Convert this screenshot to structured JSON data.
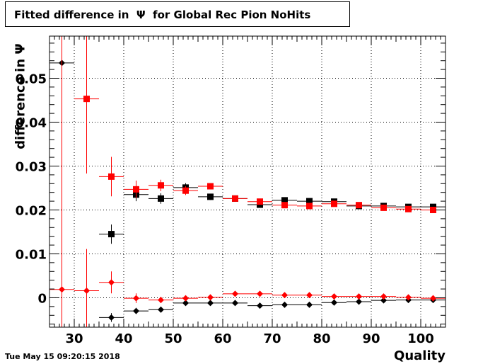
{
  "title": "Fitted difference in  Ψ  for Global Rec Pion NoHits",
  "timestamp": "Tue May 15 09:20:15 2018",
  "chart_data": {
    "type": "scatter",
    "xlabel": "Quality",
    "ylabel": "difference in  Ψ",
    "xlim": [
      25,
      105
    ],
    "ylim": [
      -0.0067,
      0.0596
    ],
    "xticks": [
      30,
      40,
      50,
      60,
      70,
      80,
      90,
      100
    ],
    "yticks": [
      0,
      0.01,
      0.02,
      0.03,
      0.04,
      0.05
    ],
    "ytick_labels": [
      "0",
      "0.01",
      "0.02",
      "0.03",
      "0.04",
      "0.05"
    ],
    "grid": true,
    "bin_halfwidth": 2.5,
    "series": [
      {
        "marker": "square",
        "color": "#000000",
        "x": [
          37.5,
          42.5,
          47.5,
          52.5,
          57.5,
          62.5,
          67.5,
          72.5,
          77.5,
          82.5,
          87.5,
          92.5,
          97.5,
          102.5
        ],
        "y": [
          0.0145,
          0.0235,
          0.0226,
          0.0251,
          0.023,
          0.0226,
          0.0212,
          0.0222,
          0.022,
          0.0219,
          0.0209,
          0.0209,
          0.0207,
          0.0207
        ],
        "err": [
          0.0022,
          0.0015,
          0.0012,
          0.001,
          0.0007,
          0.0005,
          0.0004,
          0.0003,
          0.0003,
          0.0003,
          0.0002,
          0.0002,
          0.0002,
          0.0002
        ]
      },
      {
        "marker": "square",
        "color": "#ff0000",
        "x": [
          32.5,
          37.5,
          42.5,
          47.5,
          52.5,
          57.5,
          62.5,
          67.5,
          72.5,
          77.5,
          82.5,
          87.5,
          92.5,
          97.5,
          102.5
        ],
        "y": [
          0.0453,
          0.0276,
          0.0247,
          0.0256,
          0.0244,
          0.0254,
          0.0226,
          0.0219,
          0.0211,
          0.0209,
          0.0214,
          0.0211,
          0.0205,
          0.0202,
          0.02
        ],
        "err": [
          0.017,
          0.0045,
          0.002,
          0.0013,
          0.001,
          0.0006,
          0.0005,
          0.0004,
          0.0003,
          0.0003,
          0.0003,
          0.0002,
          0.0002,
          0.0002,
          0.0002
        ]
      },
      {
        "marker": "diamond",
        "color": "#000000",
        "x": [
          27.5,
          37.5,
          42.5,
          47.5,
          52.5,
          57.5,
          62.5,
          67.5,
          72.5,
          77.5,
          82.5,
          87.5,
          92.5,
          97.5,
          102.5
        ],
        "y": [
          0.0535,
          -0.0045,
          -0.003,
          -0.0027,
          -0.0012,
          -0.0012,
          -0.0012,
          -0.0018,
          -0.0016,
          -0.0016,
          -0.0011,
          -0.0009,
          -0.0006,
          -0.0005,
          -0.0005
        ],
        "err": [
          0.01,
          0.001,
          0.0007,
          0.0005,
          0.0004,
          0.0003,
          0.0003,
          0.0002,
          0.0002,
          0.0002,
          0.0002,
          0.0002,
          0.0001,
          0.0001,
          0.0001
        ]
      },
      {
        "marker": "diamond",
        "color": "#ff0000",
        "x": [
          27.5,
          32.5,
          37.5,
          42.5,
          47.5,
          52.5,
          57.5,
          62.5,
          67.5,
          72.5,
          77.5,
          82.5,
          87.5,
          92.5,
          97.5,
          102.5
        ],
        "y": [
          0.0019,
          0.0016,
          0.0035,
          -0.0001,
          -0.0005,
          -0.0001,
          0.0001,
          0.0009,
          0.0009,
          0.0006,
          0.0006,
          0.0003,
          0.0003,
          0.0003,
          0.0001,
          -0.0001
        ],
        "err": [
          0.062,
          0.0095,
          0.0025,
          0.0011,
          0.0007,
          0.0005,
          0.0004,
          0.0003,
          0.0003,
          0.0002,
          0.0002,
          0.0002,
          0.0002,
          0.0002,
          0.0001,
          0.0001
        ]
      }
    ]
  }
}
